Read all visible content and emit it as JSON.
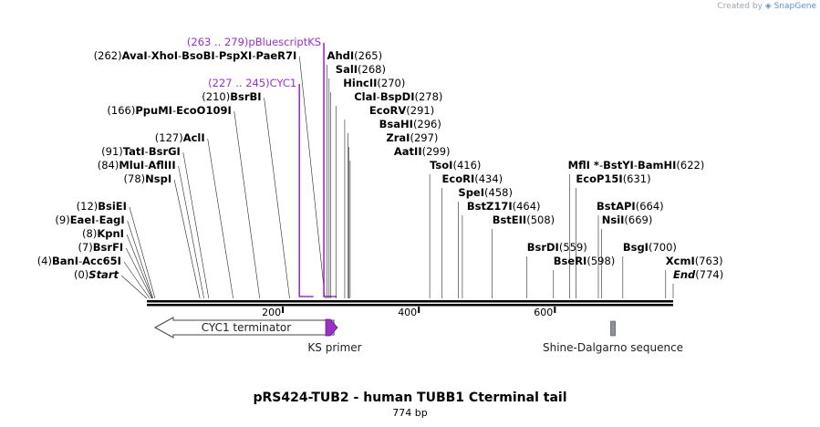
{
  "watermark": {
    "prefix": "Created by",
    "brand": "SnapGene"
  },
  "map": {
    "title": "pRS424-TUB2 - human TUBB1 Cterminal tail",
    "length_label": "774 bp",
    "length_bp": 774,
    "axis_ticks": [
      {
        "bp": 200,
        "label": "200"
      },
      {
        "bp": 400,
        "label": "400"
      },
      {
        "bp": 600,
        "label": "600"
      }
    ],
    "colors": {
      "primer": "#9b30c8",
      "feature_shine": "#8a90a0",
      "label_text": "#000000"
    }
  },
  "sites": [
    {
      "row": 0,
      "bp": 0,
      "parts": [
        {
          "t": "(0)",
          "s": "n"
        },
        {
          "t": "Start",
          "s": "bi"
        }
      ]
    },
    {
      "row": 1,
      "bp": 4,
      "parts": [
        {
          "t": "(4)",
          "s": "n"
        },
        {
          "t": "BanI",
          "s": "b"
        },
        {
          "t": "-",
          "s": "n"
        },
        {
          "t": "Acc65I",
          "s": "b"
        }
      ]
    },
    {
      "row": 2,
      "bp": 7,
      "parts": [
        {
          "t": "(7)",
          "s": "n"
        },
        {
          "t": "BsrFI",
          "s": "b"
        }
      ]
    },
    {
      "row": 3,
      "bp": 8,
      "parts": [
        {
          "t": "(8)",
          "s": "n"
        },
        {
          "t": "KpnI",
          "s": "b"
        }
      ]
    },
    {
      "row": 4,
      "bp": 9,
      "parts": [
        {
          "t": "(9)",
          "s": "n"
        },
        {
          "t": "EaeI",
          "s": "b"
        },
        {
          "t": "-",
          "s": "n"
        },
        {
          "t": "EagI",
          "s": "b"
        }
      ]
    },
    {
      "row": 5,
      "bp": 12,
      "parts": [
        {
          "t": "(12)",
          "s": "n"
        },
        {
          "t": "BsiEI",
          "s": "b"
        }
      ]
    },
    {
      "row": 7,
      "bp": 78,
      "parts": [
        {
          "t": "(78)",
          "s": "n"
        },
        {
          "t": "NspI",
          "s": "b"
        }
      ]
    },
    {
      "row": 8,
      "bp": 84,
      "parts": [
        {
          "t": "(84)",
          "s": "n"
        },
        {
          "t": "MluI",
          "s": "b"
        },
        {
          "t": "-",
          "s": "n"
        },
        {
          "t": "AflIII",
          "s": "b"
        }
      ]
    },
    {
      "row": 9,
      "bp": 91,
      "parts": [
        {
          "t": "(91)",
          "s": "n"
        },
        {
          "t": "TatI",
          "s": "b"
        },
        {
          "t": "-",
          "s": "n"
        },
        {
          "t": "BsrGI",
          "s": "b"
        }
      ]
    },
    {
      "row": 10,
      "bp": 127,
      "parts": [
        {
          "t": "(127)",
          "s": "n"
        },
        {
          "t": "AclI",
          "s": "b"
        }
      ]
    },
    {
      "row": 12,
      "bp": 166,
      "parts": [
        {
          "t": "(166)",
          "s": "n"
        },
        {
          "t": "PpuMI",
          "s": "b"
        },
        {
          "t": "-",
          "s": "n"
        },
        {
          "t": "EcoO109I",
          "s": "b"
        }
      ]
    },
    {
      "row": 13,
      "bp": 210,
      "parts": [
        {
          "t": "(210)",
          "s": "n"
        },
        {
          "t": "BsrBI",
          "s": "b"
        }
      ]
    },
    {
      "row": 14,
      "bp": 227,
      "purple": true,
      "end_bp": 245,
      "parts": [
        {
          "t": "(227 .. 245)",
          "s": "p"
        },
        {
          "t": "CYC1",
          "s": "p"
        }
      ]
    },
    {
      "row": 16,
      "bp": 262,
      "parts": [
        {
          "t": "(262)",
          "s": "n"
        },
        {
          "t": "AvaI",
          "s": "b"
        },
        {
          "t": "-",
          "s": "n"
        },
        {
          "t": "XhoI",
          "s": "b"
        },
        {
          "t": "-",
          "s": "n"
        },
        {
          "t": "BsoBI",
          "s": "b"
        },
        {
          "t": "-",
          "s": "n"
        },
        {
          "t": "PspXI",
          "s": "b"
        },
        {
          "t": "-",
          "s": "n"
        },
        {
          "t": "PaeR7I",
          "s": "b"
        }
      ]
    },
    {
      "row": 17,
      "bp": 263,
      "purple": true,
      "end_bp": 279,
      "parts": [
        {
          "t": "(263 .. 279)",
          "s": "p"
        },
        {
          "t": "pBluescriptKS",
          "s": "p"
        }
      ]
    },
    {
      "row": 16,
      "bp": 265,
      "right": true,
      "xoff": 0,
      "parts": [
        {
          "t": "AhdI",
          "s": "b"
        },
        {
          "t": "(265)",
          "s": "n"
        }
      ]
    },
    {
      "row": 15,
      "bp": 268,
      "right": true,
      "xoff": 7,
      "parts": [
        {
          "t": "SalI",
          "s": "b"
        },
        {
          "t": "(268)",
          "s": "n"
        }
      ]
    },
    {
      "row": 14,
      "bp": 270,
      "right": true,
      "xoff": 14,
      "parts": [
        {
          "t": "HincII",
          "s": "b"
        },
        {
          "t": "(270)",
          "s": "n"
        }
      ]
    },
    {
      "row": 13,
      "bp": 278,
      "right": true,
      "xoff": 20,
      "parts": [
        {
          "t": "ClaI",
          "s": "b"
        },
        {
          "t": "-",
          "s": "n"
        },
        {
          "t": "BspDI",
          "s": "b"
        },
        {
          "t": "(278)",
          "s": "n"
        }
      ]
    },
    {
      "row": 12,
      "bp": 291,
      "right": true,
      "xoff": 27,
      "parts": [
        {
          "t": "EcoRV",
          "s": "b"
        },
        {
          "t": "(291)",
          "s": "n"
        }
      ]
    },
    {
      "row": 11,
      "bp": 296,
      "right": true,
      "xoff": 34,
      "parts": [
        {
          "t": "BsaHI",
          "s": "b"
        },
        {
          "t": "(296)",
          "s": "n"
        }
      ]
    },
    {
      "row": 10,
      "bp": 297,
      "right": true,
      "xoff": 41,
      "parts": [
        {
          "t": "ZraI",
          "s": "b"
        },
        {
          "t": "(297)",
          "s": "n"
        }
      ]
    },
    {
      "row": 9,
      "bp": 299,
      "right": true,
      "xoff": 48,
      "parts": [
        {
          "t": "AatII",
          "s": "b"
        },
        {
          "t": "(299)",
          "s": "n"
        }
      ]
    },
    {
      "row": 8,
      "bp": 416,
      "right": true,
      "xoff": 0,
      "parts": [
        {
          "t": "TsoI",
          "s": "b"
        },
        {
          "t": "(416)",
          "s": "n"
        }
      ]
    },
    {
      "row": 7,
      "bp": 434,
      "right": true,
      "xoff": 0,
      "parts": [
        {
          "t": "EcoRI",
          "s": "b"
        },
        {
          "t": "(434)",
          "s": "n"
        }
      ]
    },
    {
      "row": 6,
      "bp": 458,
      "right": true,
      "xoff": 0,
      "parts": [
        {
          "t": "SpeI",
          "s": "b"
        },
        {
          "t": "(458)",
          "s": "n"
        }
      ]
    },
    {
      "row": 5,
      "bp": 464,
      "right": true,
      "xoff": 5,
      "parts": [
        {
          "t": "BstZ17I",
          "s": "b"
        },
        {
          "t": "(464)",
          "s": "n"
        }
      ]
    },
    {
      "row": 4,
      "bp": 508,
      "right": true,
      "xoff": 0,
      "parts": [
        {
          "t": "BstEII",
          "s": "b"
        },
        {
          "t": "(508)",
          "s": "n"
        }
      ]
    },
    {
      "row": 2,
      "bp": 559,
      "right": true,
      "xoff": 0,
      "parts": [
        {
          "t": "BsrDI",
          "s": "b"
        },
        {
          "t": "(559)",
          "s": "n"
        }
      ]
    },
    {
      "row": 1,
      "bp": 598,
      "right": true,
      "xoff": 0,
      "parts": [
        {
          "t": "BseRI",
          "s": "b"
        },
        {
          "t": "(598)",
          "s": "n"
        }
      ]
    },
    {
      "row": 8,
      "bp": 622,
      "right": true,
      "xoff": -2,
      "parts": [
        {
          "t": "MflI *",
          "s": "b"
        },
        {
          "t": "-",
          "s": "n"
        },
        {
          "t": "BstYI",
          "s": "b"
        },
        {
          "t": "-",
          "s": "n"
        },
        {
          "t": "BamHI",
          "s": "b"
        },
        {
          "t": "(622)",
          "s": "n"
        }
      ]
    },
    {
      "row": 7,
      "bp": 631,
      "right": true,
      "xoff": 0,
      "parts": [
        {
          "t": "EcoP15I",
          "s": "b"
        },
        {
          "t": "(631)",
          "s": "n"
        }
      ]
    },
    {
      "row": 5,
      "bp": 664,
      "right": true,
      "xoff": -2,
      "parts": [
        {
          "t": "BstAPI",
          "s": "b"
        },
        {
          "t": "(664)",
          "s": "n"
        }
      ]
    },
    {
      "row": 4,
      "bp": 669,
      "right": true,
      "xoff": 0,
      "parts": [
        {
          "t": "NsiI",
          "s": "b"
        },
        {
          "t": "(669)",
          "s": "n"
        }
      ]
    },
    {
      "row": 2,
      "bp": 700,
      "right": true,
      "xoff": 0,
      "parts": [
        {
          "t": "BsgI",
          "s": "b"
        },
        {
          "t": "(700)",
          "s": "n"
        }
      ]
    },
    {
      "row": 1,
      "bp": 763,
      "right": true,
      "xoff": 0,
      "parts": [
        {
          "t": "XcmI",
          "s": "b"
        },
        {
          "t": "(763)",
          "s": "n"
        }
      ]
    },
    {
      "row": 0,
      "bp": 774,
      "right": true,
      "xoff": 0,
      "parts": [
        {
          "t": "End",
          "s": "bi"
        },
        {
          "t": "(774)",
          "s": "n"
        }
      ]
    }
  ],
  "features": [
    {
      "name": "CYC1 terminator",
      "start_bp": 12,
      "end_bp": 275,
      "direction": "reverse",
      "style": "outline"
    },
    {
      "name": "KS primer",
      "start_bp": 263,
      "end_bp": 279,
      "direction": "forward",
      "style": "primer"
    },
    {
      "name": "Shine-Dalgarno sequence",
      "start_bp": 682,
      "end_bp": 689,
      "direction": "none",
      "style": "box"
    }
  ]
}
